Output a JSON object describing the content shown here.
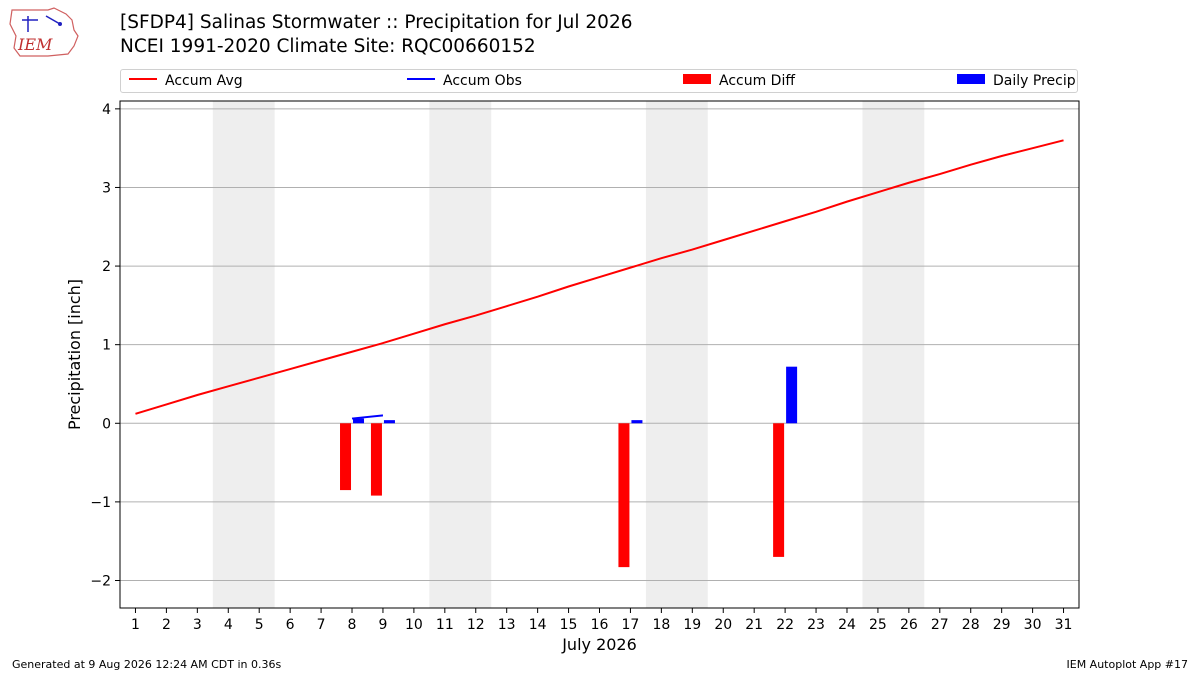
{
  "header": {
    "logo_text": "IEM",
    "title_line1": "[SFDP4] Salinas Stormwater :: Precipitation for Jul 2026",
    "title_line2": "NCEI 1991-2020 Climate Site: RQC00660152"
  },
  "legend": {
    "items": [
      {
        "label": "Accum Avg",
        "color": "#ff0000",
        "kind": "line"
      },
      {
        "label": "Accum Obs",
        "color": "#0000ff",
        "kind": "line"
      },
      {
        "label": "Accum Diff",
        "color": "#ff0000",
        "kind": "patch"
      },
      {
        "label": "Daily Precip",
        "color": "#0000ff",
        "kind": "patch"
      }
    ]
  },
  "footer": {
    "left": "Generated at 9 Aug 2026 12:24 AM CDT in 0.36s",
    "right": "IEM Autoplot App #17"
  },
  "chart_data": {
    "type": "bar",
    "xlabel": "July 2026",
    "ylabel": "Precipitation [inch]",
    "xlim": [
      0.5,
      31.5
    ],
    "ylim": [
      -2.35,
      4.1
    ],
    "yticks": [
      -2,
      -1,
      0,
      1,
      2,
      3,
      4
    ],
    "ytick_labels": [
      "−2",
      "−1",
      "0",
      "1",
      "2",
      "3",
      "4"
    ],
    "xticks": [
      1,
      2,
      3,
      4,
      5,
      6,
      7,
      8,
      9,
      10,
      11,
      12,
      13,
      14,
      15,
      16,
      17,
      18,
      19,
      20,
      21,
      22,
      23,
      24,
      25,
      26,
      27,
      28,
      29,
      30,
      31
    ],
    "grid": "horizontal",
    "legend_placement": "top",
    "weekend_shading": [
      [
        3.5,
        5.5
      ],
      [
        10.5,
        12.5
      ],
      [
        17.5,
        19.5
      ],
      [
        24.5,
        26.5
      ]
    ],
    "series": [
      {
        "name": "Accum Avg",
        "kind": "line",
        "color": "#ff0000",
        "x": [
          1,
          2,
          3,
          4,
          5,
          6,
          7,
          8,
          9,
          10,
          11,
          12,
          13,
          14,
          15,
          16,
          17,
          18,
          19,
          20,
          21,
          22,
          23,
          24,
          25,
          26,
          27,
          28,
          29,
          30,
          31
        ],
        "values": [
          0.12,
          0.24,
          0.36,
          0.47,
          0.58,
          0.69,
          0.8,
          0.91,
          1.02,
          1.14,
          1.26,
          1.37,
          1.49,
          1.61,
          1.74,
          1.86,
          1.98,
          2.1,
          2.21,
          2.33,
          2.45,
          2.57,
          2.69,
          2.82,
          2.94,
          3.06,
          3.17,
          3.29,
          3.4,
          3.5,
          3.6
        ]
      },
      {
        "name": "Accum Obs",
        "kind": "line",
        "color": "#0000ff",
        "x": [
          8,
          9
        ],
        "values": [
          0.06,
          0.1
        ]
      },
      {
        "name": "Accum Diff",
        "kind": "bar",
        "color": "#ff0000",
        "x": [
          8,
          9,
          17,
          22
        ],
        "values": [
          -0.85,
          -0.92,
          -1.83,
          -1.7
        ]
      },
      {
        "name": "Daily Precip",
        "kind": "bar",
        "color": "#0000ff",
        "x": [
          8,
          9,
          17,
          22
        ],
        "values": [
          0.06,
          0.04,
          0.04,
          0.72
        ]
      }
    ]
  }
}
